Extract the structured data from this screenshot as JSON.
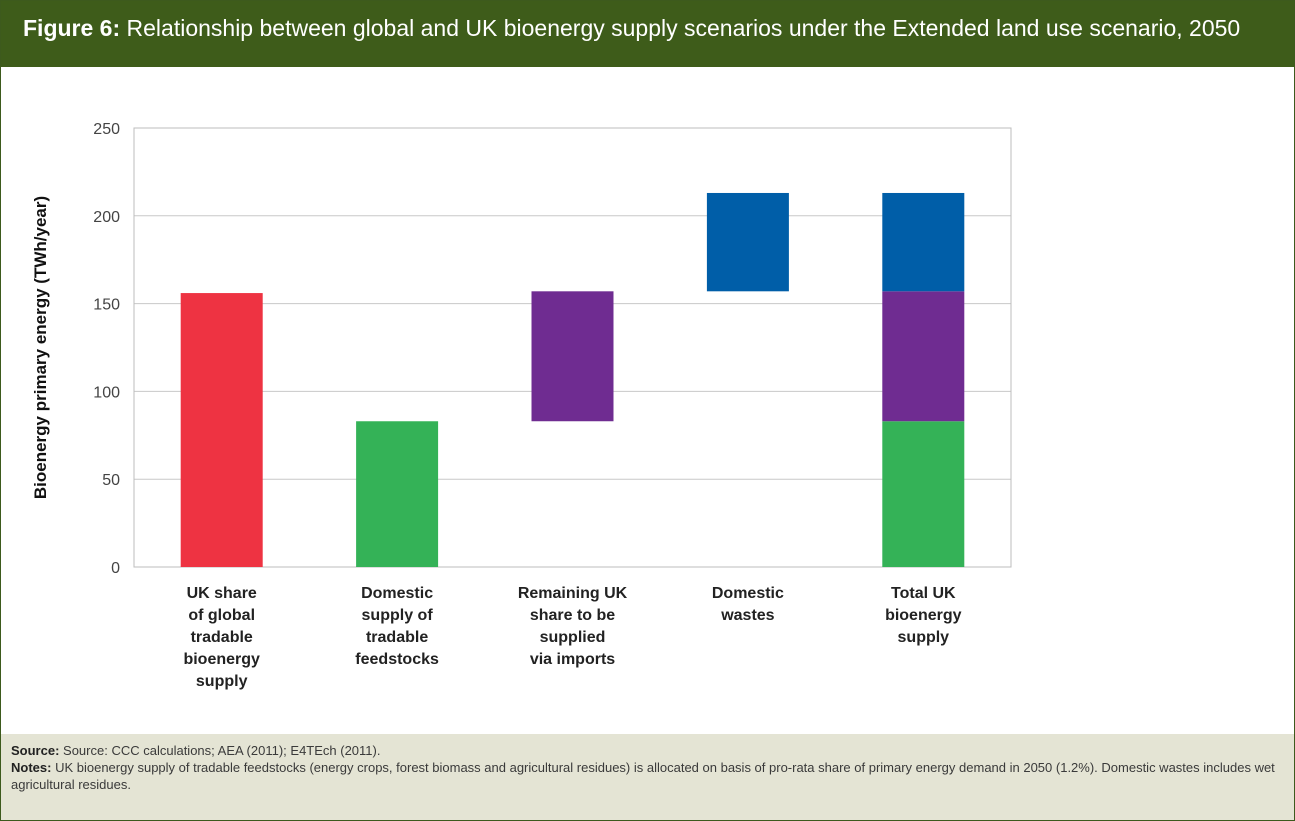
{
  "figure": {
    "label": "Figure 6:",
    "title": "Relationship between global and UK bioenergy supply scenarios under the Extended land use scenario, 2050"
  },
  "footer": {
    "source_label": "Source:",
    "source_text": "Source: CCC calculations; AEA (2011); E4TEch (2011).",
    "notes_label": "Notes:",
    "notes_text": "UK bioenergy supply of tradable feedstocks (energy crops, forest  biomass and agricultural residues) is allocated on basis of pro-rata share of primary energy demand in 2050 (1.2%). Domestic wastes includes wet agricultural residues."
  },
  "chart_data": {
    "type": "bar",
    "subtype": "waterfall-stacked",
    "ylabel": "Bioenergy primary energy (TWh/year)",
    "xlabel": "",
    "ylim": [
      0,
      250
    ],
    "yticks": [
      0,
      50,
      100,
      150,
      200,
      250
    ],
    "grid": true,
    "legend": "none",
    "colors": {
      "red": "#ee3342",
      "green": "#34b257",
      "purple": "#6f2c91",
      "blue": "#005ea8"
    },
    "categories": [
      {
        "label_lines": [
          "UK share",
          "of global",
          "tradable",
          "bioenergy",
          "supply"
        ]
      },
      {
        "label_lines": [
          "Domestic",
          "supply of",
          "tradable",
          "feedstocks"
        ]
      },
      {
        "label_lines": [
          "Remaining UK",
          "share to be",
          "supplied",
          "via imports"
        ]
      },
      {
        "label_lines": [
          "Domestic",
          "wastes"
        ]
      },
      {
        "label_lines": [
          "Total UK",
          "bioenergy",
          "supply"
        ]
      }
    ],
    "segments": [
      {
        "category": 0,
        "bottom": 0,
        "top": 156,
        "color": "red"
      },
      {
        "category": 1,
        "bottom": 0,
        "top": 83,
        "color": "green"
      },
      {
        "category": 2,
        "bottom": 83,
        "top": 157,
        "color": "purple"
      },
      {
        "category": 3,
        "bottom": 157,
        "top": 213,
        "color": "blue"
      },
      {
        "category": 4,
        "bottom": 0,
        "top": 83,
        "color": "green"
      },
      {
        "category": 4,
        "bottom": 83,
        "top": 157,
        "color": "purple"
      },
      {
        "category": 4,
        "bottom": 157,
        "top": 213,
        "color": "blue"
      }
    ]
  }
}
